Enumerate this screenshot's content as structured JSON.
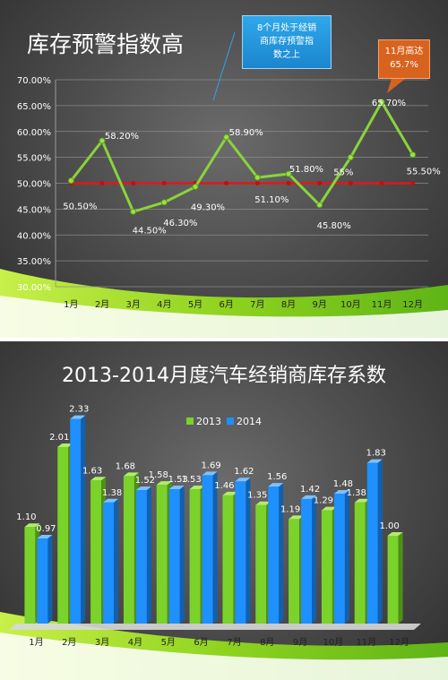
{
  "colors": {
    "green": "#7ad22b",
    "blue": "#1e90ff",
    "red": "#e01818",
    "callout_blue": "#1b86cf",
    "callout_orange": "#d8631f"
  },
  "chart_data": [
    {
      "type": "line",
      "title": "库存预警指数高",
      "categories": [
        "1月",
        "2月",
        "3月",
        "4月",
        "5月",
        "6月",
        "7月",
        "8月",
        "9月",
        "10月",
        "11月",
        "12月"
      ],
      "series": [
        {
          "values": [
            50.5,
            58.2,
            44.5,
            46.3,
            49.3,
            58.9,
            51.1,
            51.8,
            45.8,
            55.0,
            65.7,
            55.5
          ]
        },
        {
          "values": [
            50,
            50,
            50,
            50,
            50,
            50,
            50,
            50,
            50,
            50,
            50,
            50
          ]
        }
      ],
      "data_labels": [
        "50.50%",
        "58.20%",
        "44.50%",
        "46.30%",
        "49.30%",
        "58.90%",
        "51.10%",
        "51.80%",
        "45.80%",
        "55%",
        "65.70%",
        "55.50%"
      ],
      "y_ticks": [
        "30.00%",
        "35.00%",
        "40.00%",
        "45.00%",
        "50.00%",
        "55.00%",
        "60.00%",
        "65.00%",
        "70.00%"
      ],
      "ylim": [
        30,
        70
      ],
      "grid": true,
      "annotations": [
        "8个月处于经销\n商库存预警指\n数之上",
        "11月高达\n65.7%"
      ]
    },
    {
      "type": "bar",
      "title": "2013-2014月度汽车经销商库存系数",
      "categories": [
        "1月",
        "2月",
        "3月",
        "4月",
        "5月",
        "6月",
        "7月",
        "8月",
        "9月",
        "10月",
        "11月",
        "12月"
      ],
      "series": [
        {
          "name": "2013",
          "values": [
            1.1,
            2.01,
            1.63,
            1.68,
            1.58,
            1.53,
            1.46,
            1.35,
            1.19,
            1.29,
            1.38,
            1.0
          ]
        },
        {
          "name": "2014",
          "values": [
            0.97,
            2.33,
            1.38,
            1.52,
            1.53,
            1.69,
            1.62,
            1.56,
            1.42,
            1.48,
            1.83,
            null
          ]
        }
      ],
      "data_labels_2013": [
        "1.10",
        "2.01",
        "1.63",
        "1.68",
        "1.58",
        "1.53",
        "1.46",
        "1.35",
        "1.19",
        "1.29",
        "1.38",
        "1.00"
      ],
      "data_labels_2014": [
        "0.97",
        "2.33",
        "1.38",
        "1.52",
        "1.53",
        "1.69",
        "1.62",
        "1.56",
        "1.42",
        "1.48",
        "1.83",
        ""
      ],
      "ylim": [
        0,
        2.5
      ],
      "legend": "top-center",
      "grid": false
    }
  ]
}
